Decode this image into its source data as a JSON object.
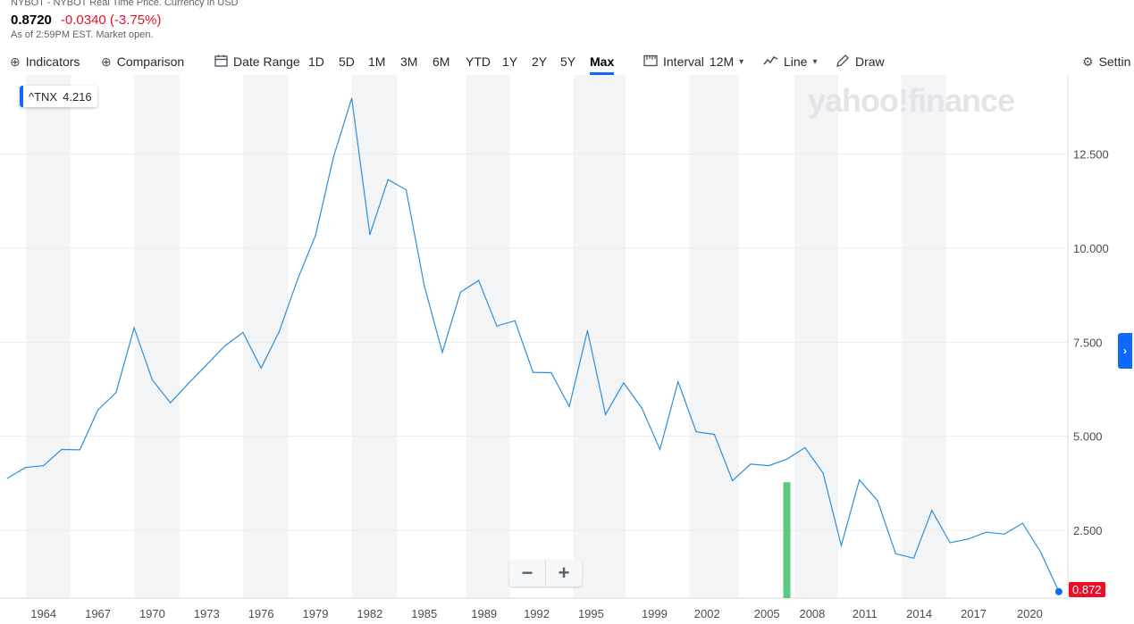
{
  "header": {
    "source": "NYBOT - NYBOT Real Time Price. Currency in USD",
    "price": "0.8720",
    "change": "-0.0340 (-3.75%)",
    "as_of": "As of 2:59PM EST. Market open."
  },
  "toolbar": {
    "indicators": "Indicators",
    "comparison": "Comparison",
    "date_range": "Date Range",
    "ranges": [
      "1D",
      "5D",
      "1M",
      "3M",
      "6M",
      "YTD",
      "1Y",
      "2Y",
      "5Y",
      "Max"
    ],
    "active_range": "Max",
    "interval_label": "Interval",
    "interval_value": "12M",
    "chart_type": "Line",
    "draw": "Draw",
    "settings": "Settin"
  },
  "legend": {
    "symbol": "^TNX",
    "value": "4.216"
  },
  "watermark": "yahoo!finance",
  "last_price_tag": "0.872",
  "colors": {
    "line": "#2e8fd8",
    "accent": "#0f69ff",
    "negative": "#eb0f29",
    "volume": "#5ec87f"
  },
  "chart_data": {
    "type": "line",
    "series": [
      {
        "name": "^TNX",
        "x": [
          1962,
          1963,
          1964,
          1965,
          1966,
          1967,
          1968,
          1969,
          1970,
          1971,
          1972,
          1973,
          1974,
          1975,
          1976,
          1977,
          1978,
          1979,
          1980,
          1981,
          1982,
          1983,
          1984,
          1985,
          1986,
          1987,
          1988,
          1989,
          1990,
          1991,
          1992,
          1993,
          1994,
          1995,
          1996,
          1997,
          1998,
          1999,
          2000,
          2001,
          2002,
          2003,
          2004,
          2005,
          2006,
          2007,
          2008,
          2009,
          2010,
          2011,
          2012,
          2013,
          2014,
          2015,
          2016,
          2017,
          2018,
          2019,
          2020
        ],
        "values": [
          3.88,
          4.17,
          4.22,
          4.65,
          4.64,
          5.7,
          6.16,
          7.88,
          6.5,
          5.89,
          6.41,
          6.9,
          7.4,
          7.76,
          6.81,
          7.78,
          9.15,
          10.33,
          12.43,
          13.98,
          10.36,
          11.82,
          11.55,
          9.0,
          7.23,
          8.83,
          9.14,
          7.93,
          8.07,
          6.7,
          6.69,
          5.79,
          7.81,
          5.58,
          6.42,
          5.75,
          4.65,
          6.45,
          5.12,
          5.05,
          3.82,
          4.26,
          4.22,
          4.39,
          4.7,
          4.02,
          2.1,
          3.84,
          3.29,
          1.88,
          1.76,
          3.03,
          2.17,
          2.27,
          2.45,
          2.4,
          2.69,
          1.92,
          0.872
        ]
      }
    ],
    "x_ticks": [
      "1964",
      "1967",
      "1970",
      "1973",
      "1976",
      "1979",
      "1982",
      "1985",
      "1989",
      "1992",
      "1995",
      "1999",
      "2002",
      "2005",
      "2008",
      "2011",
      "2014",
      "2017",
      "2020"
    ],
    "x_tick_years": [
      1964,
      1967,
      1970,
      1973,
      1976,
      1979,
      1982,
      1985,
      1988.3,
      1991.2,
      1994.2,
      1997.7,
      2000.6,
      2003.9,
      2006.4,
      2009.3,
      2012.3,
      2015.3,
      2018.4
    ],
    "y_ticks": [
      "2.500",
      "5.000",
      "7.500",
      "10.000",
      "12.500"
    ],
    "y_tick_values": [
      2.5,
      5.0,
      7.5,
      10.0,
      12.5
    ],
    "ylim": [
      0.7,
      14.6
    ],
    "xlim": [
      1961.6,
      2020.5
    ],
    "volume_bar": {
      "x": 2005,
      "value": 3.78
    },
    "grid": true,
    "legend_position": "top-left"
  }
}
